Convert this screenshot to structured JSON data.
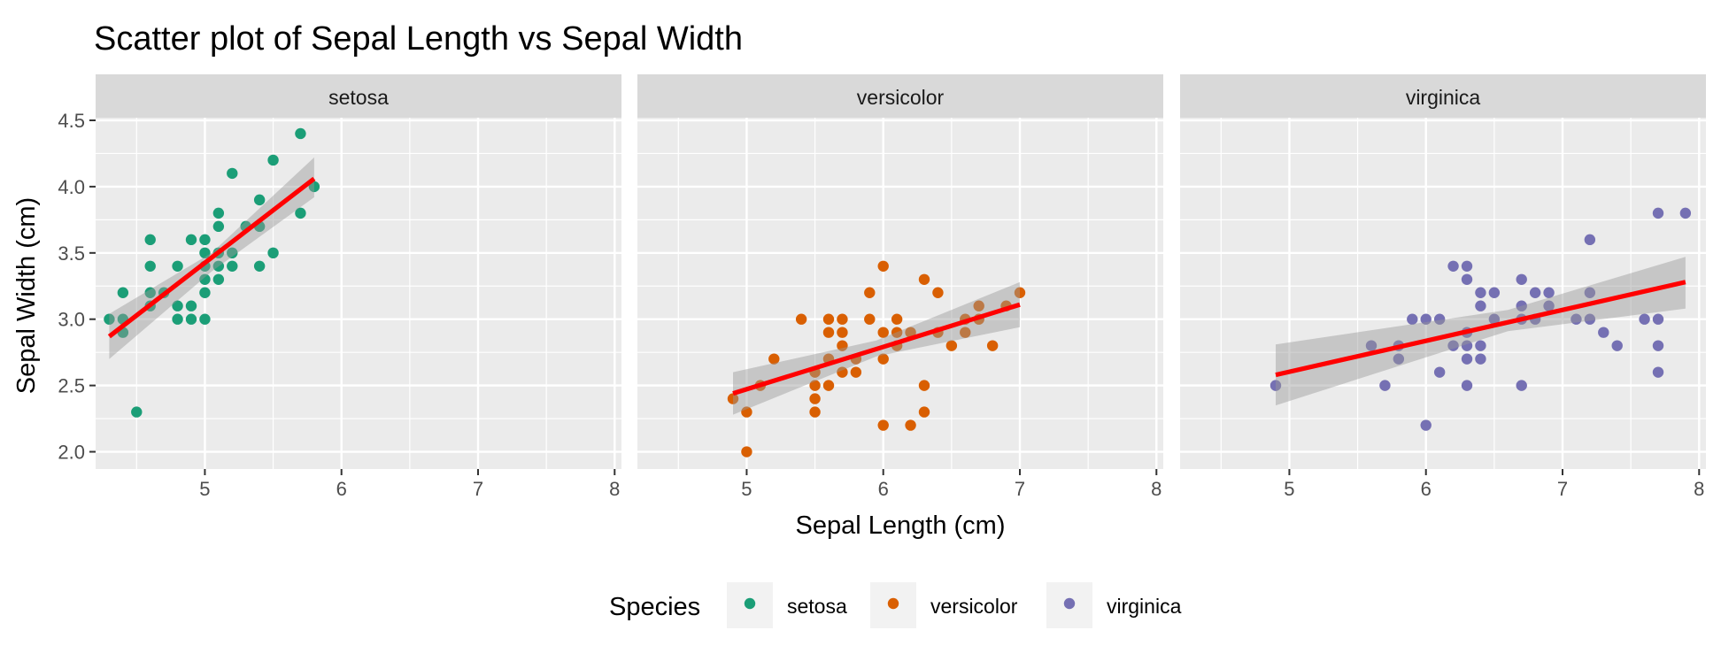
{
  "chart_data": {
    "type": "scatter",
    "title": "Scatter plot of Sepal Length  vs Sepal Width",
    "xlabel": "Sepal Length (cm)",
    "ylabel": "Sepal Width (cm)",
    "xlim": [
      4.2,
      8.05
    ],
    "ylim": [
      1.87,
      4.52
    ],
    "x_ticks": [
      5,
      6,
      7,
      8
    ],
    "y_ticks": [
      2.0,
      2.5,
      3.0,
      3.5,
      4.0,
      4.5
    ],
    "y_tick_labels": [
      "2.0",
      "2.5",
      "3.0",
      "3.5",
      "4.0",
      "4.5"
    ],
    "grid": true,
    "legend": {
      "title": "Species",
      "position": "bottom"
    },
    "fit": {
      "method": "linear regression",
      "line_color": "#FF0000",
      "band_color": "#999999"
    },
    "panels": [
      {
        "name": "setosa",
        "color": "#1B9E77",
        "points": [
          [
            4.3,
            3.0
          ],
          [
            4.4,
            2.9
          ],
          [
            4.4,
            3.0
          ],
          [
            4.4,
            3.2
          ],
          [
            4.5,
            2.3
          ],
          [
            4.6,
            3.1
          ],
          [
            4.6,
            3.2
          ],
          [
            4.6,
            3.4
          ],
          [
            4.6,
            3.6
          ],
          [
            4.7,
            3.2
          ],
          [
            4.8,
            3.0
          ],
          [
            4.8,
            3.1
          ],
          [
            4.8,
            3.4
          ],
          [
            4.9,
            3.0
          ],
          [
            4.9,
            3.1
          ],
          [
            4.9,
            3.6
          ],
          [
            5.0,
            3.0
          ],
          [
            5.0,
            3.2
          ],
          [
            5.0,
            3.3
          ],
          [
            5.0,
            3.4
          ],
          [
            5.0,
            3.5
          ],
          [
            5.0,
            3.6
          ],
          [
            5.1,
            3.3
          ],
          [
            5.1,
            3.4
          ],
          [
            5.1,
            3.5
          ],
          [
            5.1,
            3.7
          ],
          [
            5.1,
            3.8
          ],
          [
            5.2,
            3.4
          ],
          [
            5.2,
            3.5
          ],
          [
            5.2,
            4.1
          ],
          [
            5.3,
            3.7
          ],
          [
            5.4,
            3.4
          ],
          [
            5.4,
            3.7
          ],
          [
            5.4,
            3.9
          ],
          [
            5.5,
            3.5
          ],
          [
            5.5,
            4.2
          ],
          [
            5.7,
            3.8
          ],
          [
            5.7,
            4.4
          ],
          [
            5.8,
            4.0
          ]
        ],
        "fit_line": [
          [
            4.3,
            2.87
          ],
          [
            5.8,
            4.06
          ]
        ],
        "band": {
          "x": [
            4.3,
            5.05,
            5.8
          ],
          "lower": [
            2.7,
            3.36,
            3.92
          ],
          "upper": [
            3.04,
            3.5,
            4.22
          ]
        }
      },
      {
        "name": "versicolor",
        "color": "#D95F02",
        "points": [
          [
            4.9,
            2.4
          ],
          [
            5.0,
            2.0
          ],
          [
            5.0,
            2.3
          ],
          [
            5.1,
            2.5
          ],
          [
            5.2,
            2.7
          ],
          [
            5.4,
            3.0
          ],
          [
            5.5,
            2.3
          ],
          [
            5.5,
            2.4
          ],
          [
            5.5,
            2.5
          ],
          [
            5.5,
            2.6
          ],
          [
            5.6,
            2.5
          ],
          [
            5.6,
            2.7
          ],
          [
            5.6,
            2.9
          ],
          [
            5.6,
            3.0
          ],
          [
            5.7,
            2.6
          ],
          [
            5.7,
            2.8
          ],
          [
            5.7,
            2.9
          ],
          [
            5.7,
            3.0
          ],
          [
            5.8,
            2.6
          ],
          [
            5.8,
            2.7
          ],
          [
            5.9,
            3.0
          ],
          [
            5.9,
            3.2
          ],
          [
            6.0,
            2.2
          ],
          [
            6.0,
            2.7
          ],
          [
            6.0,
            2.9
          ],
          [
            6.0,
            3.4
          ],
          [
            6.1,
            2.8
          ],
          [
            6.1,
            2.9
          ],
          [
            6.1,
            3.0
          ],
          [
            6.2,
            2.2
          ],
          [
            6.2,
            2.9
          ],
          [
            6.3,
            2.3
          ],
          [
            6.3,
            2.5
          ],
          [
            6.3,
            3.3
          ],
          [
            6.4,
            2.9
          ],
          [
            6.4,
            3.2
          ],
          [
            6.5,
            2.8
          ],
          [
            6.6,
            2.9
          ],
          [
            6.6,
            3.0
          ],
          [
            6.7,
            3.0
          ],
          [
            6.7,
            3.1
          ],
          [
            6.8,
            2.8
          ],
          [
            6.9,
            3.1
          ],
          [
            7.0,
            3.2
          ]
        ],
        "fit_line": [
          [
            4.9,
            2.44
          ],
          [
            7.0,
            3.11
          ]
        ],
        "band": {
          "x": [
            4.9,
            5.95,
            7.0
          ],
          "lower": [
            2.28,
            2.72,
            2.94
          ],
          "upper": [
            2.6,
            2.84,
            3.28
          ]
        }
      },
      {
        "name": "virginica",
        "color": "#7570B3",
        "points": [
          [
            4.9,
            2.5
          ],
          [
            5.6,
            2.8
          ],
          [
            5.7,
            2.5
          ],
          [
            5.8,
            2.7
          ],
          [
            5.8,
            2.8
          ],
          [
            5.9,
            3.0
          ],
          [
            6.0,
            2.2
          ],
          [
            6.0,
            3.0
          ],
          [
            6.1,
            2.6
          ],
          [
            6.1,
            3.0
          ],
          [
            6.2,
            2.8
          ],
          [
            6.2,
            3.4
          ],
          [
            6.3,
            2.5
          ],
          [
            6.3,
            2.7
          ],
          [
            6.3,
            2.8
          ],
          [
            6.3,
            2.9
          ],
          [
            6.3,
            3.3
          ],
          [
            6.3,
            3.4
          ],
          [
            6.4,
            2.7
          ],
          [
            6.4,
            2.8
          ],
          [
            6.4,
            3.1
          ],
          [
            6.4,
            3.2
          ],
          [
            6.5,
            3.0
          ],
          [
            6.5,
            3.2
          ],
          [
            6.7,
            2.5
          ],
          [
            6.7,
            3.0
          ],
          [
            6.7,
            3.1
          ],
          [
            6.7,
            3.3
          ],
          [
            6.8,
            3.0
          ],
          [
            6.8,
            3.2
          ],
          [
            6.9,
            3.1
          ],
          [
            6.9,
            3.2
          ],
          [
            7.1,
            3.0
          ],
          [
            7.2,
            3.0
          ],
          [
            7.2,
            3.2
          ],
          [
            7.2,
            3.6
          ],
          [
            7.3,
            2.9
          ],
          [
            7.4,
            2.8
          ],
          [
            7.6,
            3.0
          ],
          [
            7.7,
            2.6
          ],
          [
            7.7,
            2.8
          ],
          [
            7.7,
            3.0
          ],
          [
            7.7,
            3.8
          ],
          [
            7.9,
            3.8
          ]
        ],
        "fit_line": [
          [
            4.9,
            2.58
          ],
          [
            7.9,
            3.28
          ]
        ],
        "band": {
          "x": [
            4.9,
            6.6,
            7.9
          ],
          "lower": [
            2.35,
            2.91,
            3.08
          ],
          "upper": [
            2.81,
            3.07,
            3.47
          ]
        }
      }
    ]
  }
}
